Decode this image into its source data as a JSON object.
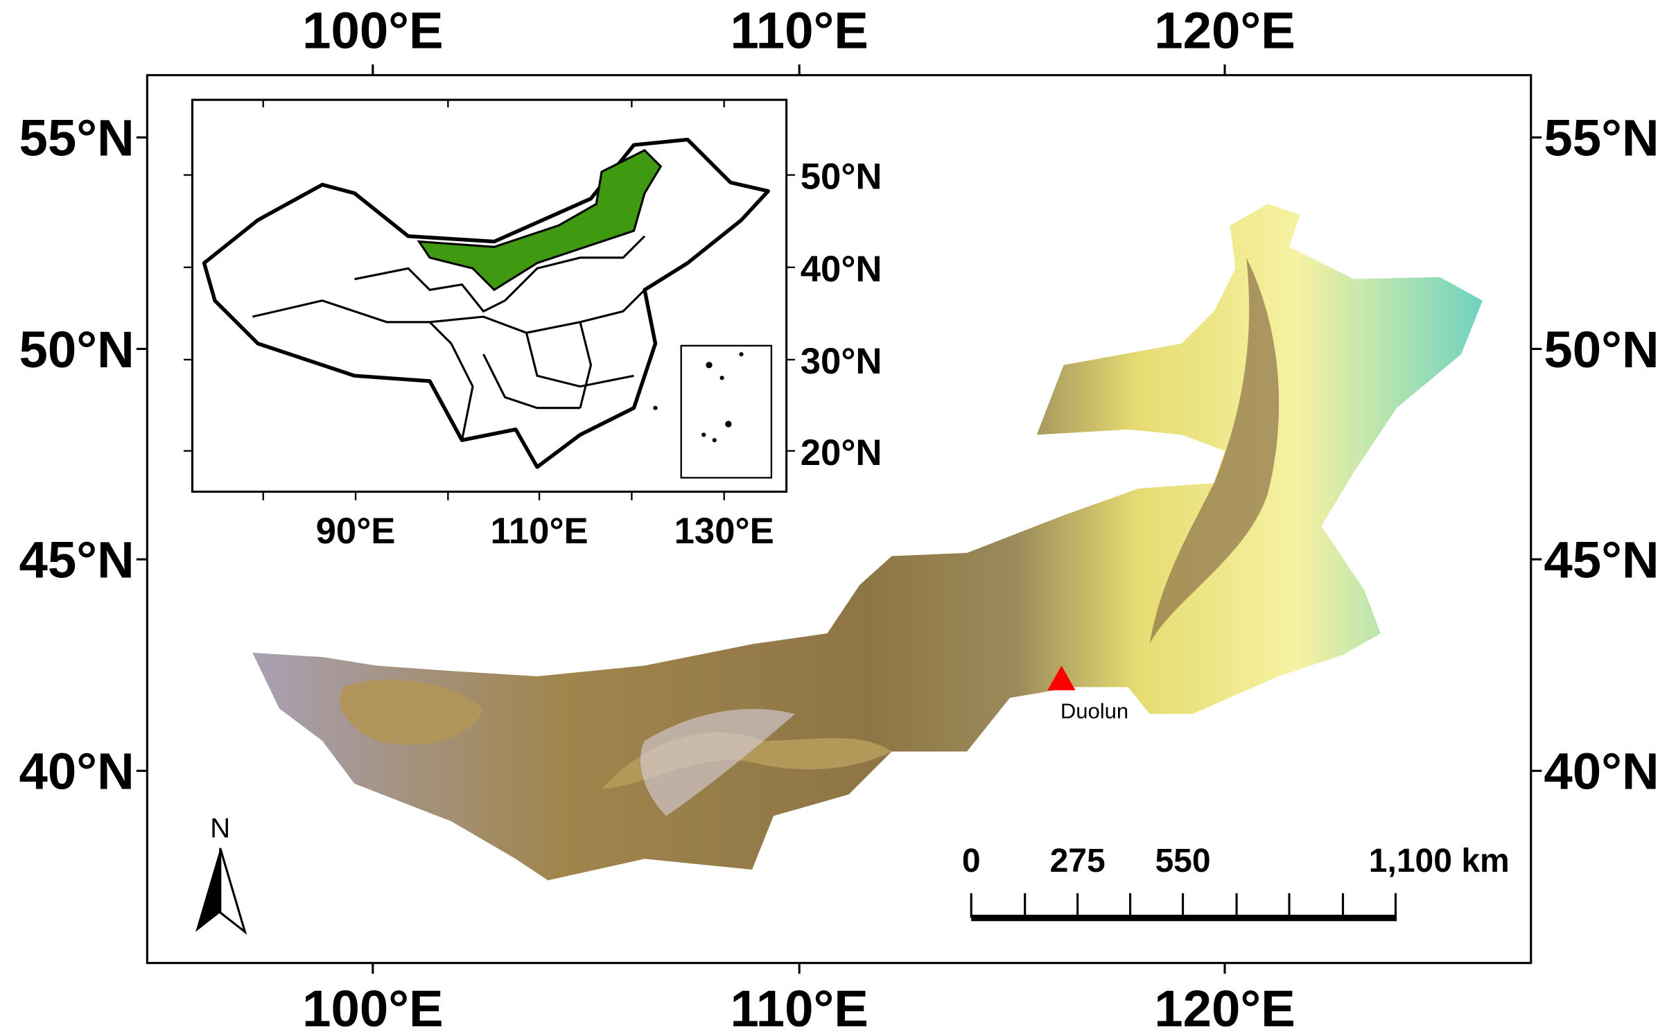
{
  "map": {
    "top_longitude_labels": [
      "100°E",
      "110°E",
      "120°E"
    ],
    "bottom_longitude_labels": [
      "100°E",
      "110°E",
      "120°E"
    ],
    "left_latitude_labels": [
      "55°N",
      "50°N",
      "45°N",
      "40°N"
    ],
    "right_latitude_labels": [
      "55°N",
      "50°N",
      "45°N",
      "40°N"
    ],
    "inset": {
      "latitude_labels": [
        "50°N",
        "40°N",
        "30°N",
        "20°N"
      ],
      "longitude_labels": [
        "90°E",
        "110°E",
        "130°E"
      ]
    },
    "place_label": "Duolun",
    "scale_bar": {
      "labels": [
        "0",
        "275",
        "550",
        "1,100 km"
      ]
    },
    "north_label": "N"
  }
}
